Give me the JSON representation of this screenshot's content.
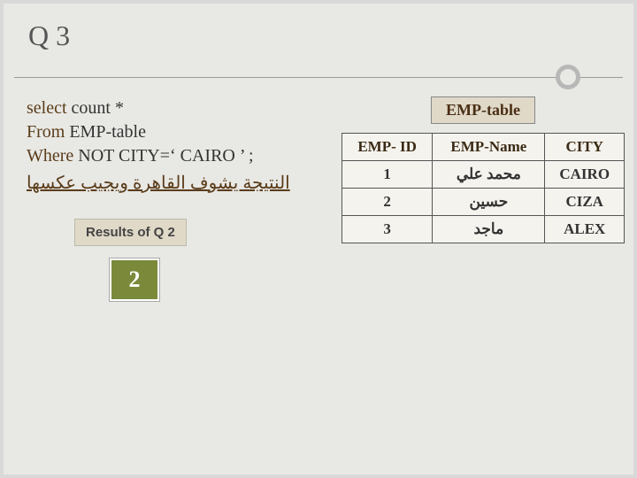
{
  "title": "Q 3",
  "sql": {
    "line1_kw": "select",
    "line1_rest": "   count *",
    "line2_kw": "From",
    "line2_rest": "   EMP-table",
    "line3_kw": "Where",
    "line3_rest": "  NOT CITY=‘ CAIRO ’ ;"
  },
  "arabic_note": "النتيجة يشوف القاهرة ويجيب عكسها",
  "results_label": "Results of Q 2",
  "result_value": "2",
  "emp_table": {
    "title": "EMP-table",
    "columns": [
      "EMP- ID",
      "EMP-Name",
      "CITY"
    ],
    "rows": [
      [
        "1",
        "محمد علي",
        "CAIRO"
      ],
      [
        "2",
        "حسين",
        "CIZA"
      ],
      [
        "3",
        "ماجد",
        "ALEX"
      ]
    ]
  },
  "colors": {
    "page_bg": "#d9d9d9",
    "slide_bg": "#e8e8e4",
    "keyword": "#5a3c1a",
    "box_bg": "#7a8a3a",
    "label_bg": "#e0d9c8"
  }
}
